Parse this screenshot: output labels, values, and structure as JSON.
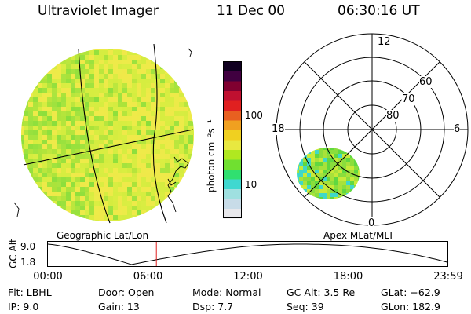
{
  "header": {
    "title": "Ultraviolet Imager",
    "date": "11 Dec 00",
    "time": "06:30:16 UT"
  },
  "colorbar": {
    "unit_label": "photon cm⁻²s⁻¹",
    "tick_100": "100",
    "tick_10": "10",
    "colors": [
      "#e8e8ec",
      "#c8dce8",
      "#9fe0e0",
      "#40d8d0",
      "#30e070",
      "#70e030",
      "#b0e820",
      "#e8e840",
      "#f0d020",
      "#f0a020",
      "#e86020",
      "#e02020",
      "#c01030",
      "#800030",
      "#400040",
      "#100020"
    ]
  },
  "left_panel": {
    "caption": "Geographic Lat/Lon",
    "fill_colors": [
      "#e6f046",
      "#c8ea38",
      "#a8e23a",
      "#8ade3c",
      "#f0e84a",
      "#d4ec40"
    ]
  },
  "right_panel": {
    "caption": "Apex MLat/MLT",
    "mlt_top": "12",
    "mlt_left": "18",
    "mlt_right": "6",
    "mlt_bottom": "0",
    "lat_60": "60",
    "lat_70": "70",
    "lat_80": "80",
    "fill_colors": [
      "#8ade3c",
      "#a8e23a",
      "#60d840",
      "#c8ea38",
      "#40d8c8"
    ]
  },
  "altitude_plot": {
    "ylabel": "GC Alt",
    "ytick_high": "9.0",
    "ytick_low": "1.8",
    "xticks": [
      "00:00",
      "06:00",
      "12:00",
      "18:00",
      "23:59"
    ],
    "marker_color": "#e02020",
    "marker_time_hours": 6.504
  },
  "info": {
    "flt": "Flt: LBHL",
    "ip": "IP:  9.0",
    "door": "Door: Open",
    "gain": "Gain: 13",
    "mode": "Mode: Normal",
    "dsp": "Dsp:     7.7",
    "gcalt": "GC Alt: 3.5 Re",
    "seq": "Seq: 39",
    "glat": "GLat: −62.9",
    "glon": "GLon: 182.9"
  }
}
